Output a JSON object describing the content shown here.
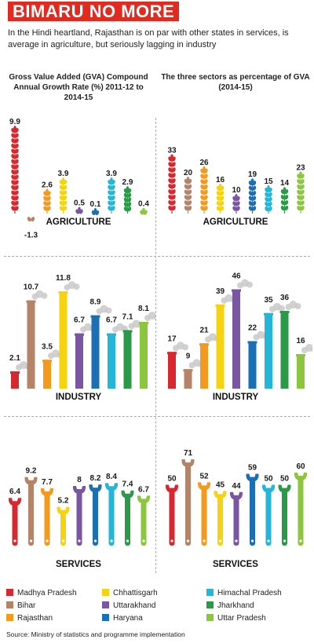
{
  "header": {
    "title": "BIMARU NO MORE",
    "subtitle": "In the Hindi heartland, Rajasthan is on par with other states in services, is average in agriculture, but seriously lagging in industry"
  },
  "left_title": "Gross Value Added (GVA) Compound Annual Growth Rate (%) 2011-12 to 2014-15",
  "right_title": "The three sectors as percentage of GVA (2014-15)",
  "source": "Source: Ministry of statistics and programme implementation",
  "colors": {
    "Madhya Pradesh": "#d7282f",
    "Bihar": "#b58468",
    "Rajasthan": "#f39a1e",
    "Chhattisgarh": "#f6d311",
    "Uttarakhand": "#7a55a4",
    "Haryana": "#1b6fb4",
    "Himachal Pradesh": "#23b6d8",
    "Jharkhand": "#2b9a48",
    "Uttar Pradesh": "#8cc63f"
  },
  "chart_data": [
    {
      "type": "bar",
      "panel": "growth",
      "label": "AGRICULTURE",
      "categories": [
        "Madhya Pradesh",
        "Bihar",
        "Rajasthan",
        "Chhattisgarh",
        "Uttarakhand",
        "Haryana",
        "Himachal Pradesh",
        "Jharkhand",
        "Uttar Pradesh"
      ],
      "values": [
        9.9,
        -1.3,
        2.6,
        3.9,
        0.5,
        0.1,
        3.9,
        2.9,
        0.4
      ],
      "value_labels": [
        "9.9",
        "-1.3",
        "2.6",
        "3.9",
        "0.5",
        "0.1",
        "3.9",
        "2.9",
        "0.4"
      ]
    },
    {
      "type": "bar",
      "panel": "share",
      "label": "AGRICULTURE",
      "categories": [
        "Madhya Pradesh",
        "Bihar",
        "Rajasthan",
        "Chhattisgarh",
        "Uttarakhand",
        "Haryana",
        "Himachal Pradesh",
        "Jharkhand",
        "Uttar Pradesh"
      ],
      "values": [
        33,
        20,
        26,
        16,
        10,
        19,
        15,
        14,
        23
      ],
      "value_labels": [
        "33",
        "20",
        "26",
        "16",
        "10",
        "19",
        "15",
        "14",
        "23"
      ]
    },
    {
      "type": "bar",
      "panel": "growth",
      "label": "INDUSTRY",
      "categories": [
        "Madhya Pradesh",
        "Bihar",
        "Rajasthan",
        "Chhattisgarh",
        "Uttarakhand",
        "Haryana",
        "Himachal Pradesh",
        "Jharkhand",
        "Uttar Pradesh"
      ],
      "values": [
        2.1,
        10.7,
        3.5,
        11.8,
        6.7,
        8.9,
        6.7,
        7.1,
        8.1
      ],
      "value_labels": [
        "2.1",
        "10.7",
        "3.5",
        "11.8",
        "6.7",
        "8.9",
        "6.7",
        "7.1",
        "8.1"
      ]
    },
    {
      "type": "bar",
      "panel": "share",
      "label": "INDUSTRY",
      "categories": [
        "Madhya Pradesh",
        "Bihar",
        "Rajasthan",
        "Chhattisgarh",
        "Uttarakhand",
        "Haryana",
        "Himachal Pradesh",
        "Jharkhand",
        "Uttar Pradesh"
      ],
      "values": [
        17,
        9,
        21,
        39,
        46,
        22,
        35,
        36,
        16
      ],
      "value_labels": [
        "17",
        "9",
        "21",
        "39",
        "46",
        "22",
        "35",
        "36",
        "16"
      ]
    },
    {
      "type": "bar",
      "panel": "growth",
      "label": "SERVICES",
      "categories": [
        "Madhya Pradesh",
        "Bihar",
        "Rajasthan",
        "Chhattisgarh",
        "Uttarakhand",
        "Haryana",
        "Himachal Pradesh",
        "Jharkhand",
        "Uttar Pradesh"
      ],
      "values": [
        6.4,
        9.2,
        7.7,
        5.2,
        8,
        8.2,
        8.4,
        7.4,
        6.7
      ],
      "value_labels": [
        "6.4",
        "9.2",
        "7.7",
        "5.2",
        "8",
        "8.2",
        "8.4",
        "7.4",
        "6.7"
      ]
    },
    {
      "type": "bar",
      "panel": "share",
      "label": "SERVICES",
      "categories": [
        "Madhya Pradesh",
        "Bihar",
        "Rajasthan",
        "Chhattisgarh",
        "Uttarakhand",
        "Haryana",
        "Himachal Pradesh",
        "Jharkhand",
        "Uttar Pradesh"
      ],
      "values": [
        50,
        71,
        52,
        45,
        44,
        59,
        50,
        50,
        60
      ],
      "value_labels": [
        "50",
        "71",
        "52",
        "45",
        "44",
        "59",
        "50",
        "50",
        "60"
      ]
    }
  ],
  "legend": [
    "Madhya Pradesh",
    "Bihar",
    "Rajasthan",
    "Chhattisgarh",
    "Uttarakhand",
    "Haryana",
    "Himachal Pradesh",
    "Jharkhand",
    "Uttar Pradesh"
  ]
}
